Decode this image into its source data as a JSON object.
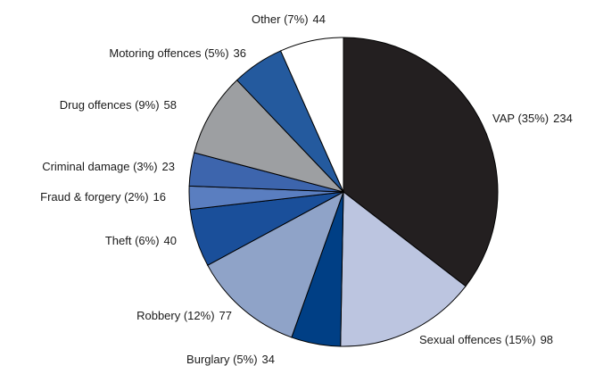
{
  "chart_data": {
    "type": "pie",
    "title": "",
    "start_angle_deg": 0,
    "direction": "clockwise",
    "slices": [
      {
        "label": "VAP",
        "percent_label": "(35%)",
        "value": 234,
        "color": "#231f20"
      },
      {
        "label": "Sexual offences",
        "percent_label": "(15%)",
        "value": 98,
        "color": "#bcc5e0"
      },
      {
        "label": "Burglary",
        "percent_label": "(5%)",
        "value": 34,
        "color": "#003f85"
      },
      {
        "label": "Robbery",
        "percent_label": "(12%)",
        "value": 77,
        "color": "#8fa3c8"
      },
      {
        "label": "Theft",
        "percent_label": "(6%)",
        "value": 40,
        "color": "#1a4f9a"
      },
      {
        "label": "Fraud & forgery",
        "percent_label": "(2%)",
        "value": 16,
        "color": "#5a7ec0"
      },
      {
        "label": "Criminal damage",
        "percent_label": "(3%)",
        "value": 23,
        "color": "#3d65ad"
      },
      {
        "label": "Drug offences",
        "percent_label": "(9%)",
        "value": 58,
        "color": "#9d9fa2"
      },
      {
        "label": "Motoring offences",
        "percent_label": "(5%)",
        "value": 36,
        "color": "#245a9e"
      },
      {
        "label": "Other",
        "percent_label": "(7%)",
        "value": 44,
        "color": "#ffffff"
      }
    ]
  }
}
